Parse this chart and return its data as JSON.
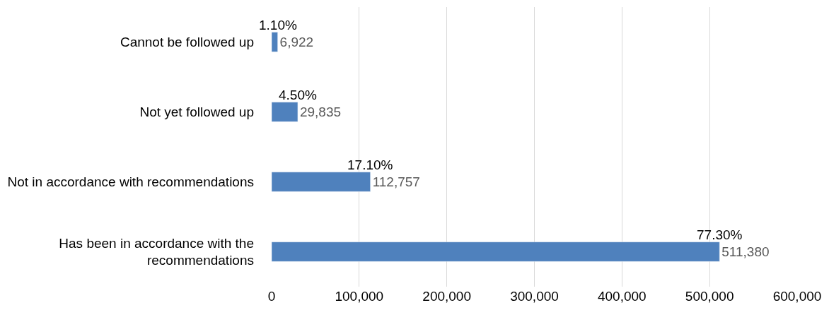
{
  "chart_data": {
    "type": "bar",
    "orientation": "horizontal",
    "categories": [
      "Cannot be followed up",
      "Not yet followed up",
      "Not in accordance with recommendations",
      "Has been in accordance with the recommendations"
    ],
    "values": [
      6922,
      29835,
      112757,
      511380
    ],
    "value_labels": [
      "6,922",
      "29,835",
      "112,757",
      "511,380"
    ],
    "color": "#4f81bd",
    "annotations": [
      {
        "text": "1.10%",
        "x": 6922,
        "y": "Cannot be followed up"
      },
      {
        "text": "4.50%",
        "x": 29835,
        "y": "Not yet followed up"
      },
      {
        "text": "17.10%",
        "x": 112757,
        "y": "Not in accordance with recommendations"
      },
      {
        "text": "77.30%",
        "x": 511380,
        "y": "Has been in accordance with the recommendations"
      }
    ],
    "xlim": [
      0,
      600000
    ],
    "xticks": [
      0,
      {
        "value": 100000,
        "label": "100,000"
      },
      {
        "value": 200000,
        "label": "200,000"
      },
      {
        "value": 300000,
        "label": "300,000"
      },
      {
        "value": 400000,
        "label": "400,000"
      },
      {
        "value": 500000,
        "label": "500,000"
      },
      {
        "value": 600000,
        "label": "600,000"
      }
    ],
    "grid": "x",
    "legend": false
  }
}
